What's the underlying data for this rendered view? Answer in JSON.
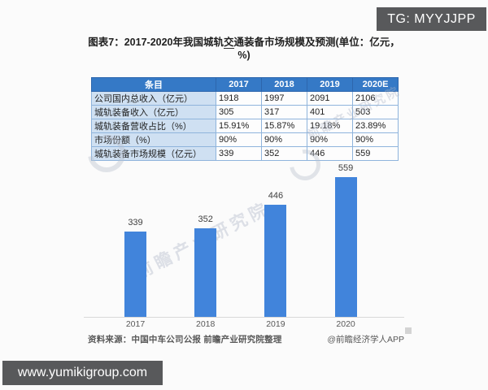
{
  "badges": {
    "tg": "TG: MYYJJPP",
    "site": "www.yumikigroup.com"
  },
  "title": {
    "part1": "图表7：2017-2020年我国城轨",
    "underlined": "交",
    "part2": "通装备市场规模及预测(单位：亿元，%)"
  },
  "table": {
    "columns": [
      "条目",
      "2017",
      "2018",
      "2019",
      "2020E"
    ],
    "rows": [
      {
        "label": "公司国内总收入（亿元）",
        "values": [
          "1918",
          "1997",
          "2091",
          "2106"
        ]
      },
      {
        "label": "城轨装备收入（亿元）",
        "values": [
          "305",
          "317",
          "401",
          "503"
        ]
      },
      {
        "label": "城轨装备营收占比（%）",
        "values": [
          "15.91%",
          "15.87%",
          "19.18%",
          "23.89%"
        ]
      },
      {
        "label": "市场份额（%）",
        "values": [
          "90%",
          "90%",
          "90%",
          "90%"
        ]
      },
      {
        "label": "城轨装备市场规模（亿元）",
        "values": [
          "339",
          "352",
          "446",
          "559"
        ]
      }
    ]
  },
  "chart_data": {
    "type": "bar",
    "categories": [
      "2017",
      "2018",
      "2019",
      "2020"
    ],
    "values": [
      339,
      352,
      446,
      559
    ],
    "title": "城轨装备市场规模（亿元）",
    "xlabel": "",
    "ylabel": "",
    "ylim": [
      0,
      600
    ],
    "bar_color": "#4184db",
    "data_labels": true,
    "grid": false,
    "legend": false
  },
  "footer": {
    "source": "资料来源：中国中车公司公报 前瞻产业研究院整理",
    "credit": "@前瞻经济学人APP"
  },
  "watermark": {
    "text": "前瞻产业研究院"
  },
  "colors": {
    "bar_blue": "#4184db",
    "table_header_bg": "#3579c6",
    "table_label_bg": "#cfe0f2",
    "badge_bg": "#58595b",
    "axis_line": "#d9d9d9"
  }
}
